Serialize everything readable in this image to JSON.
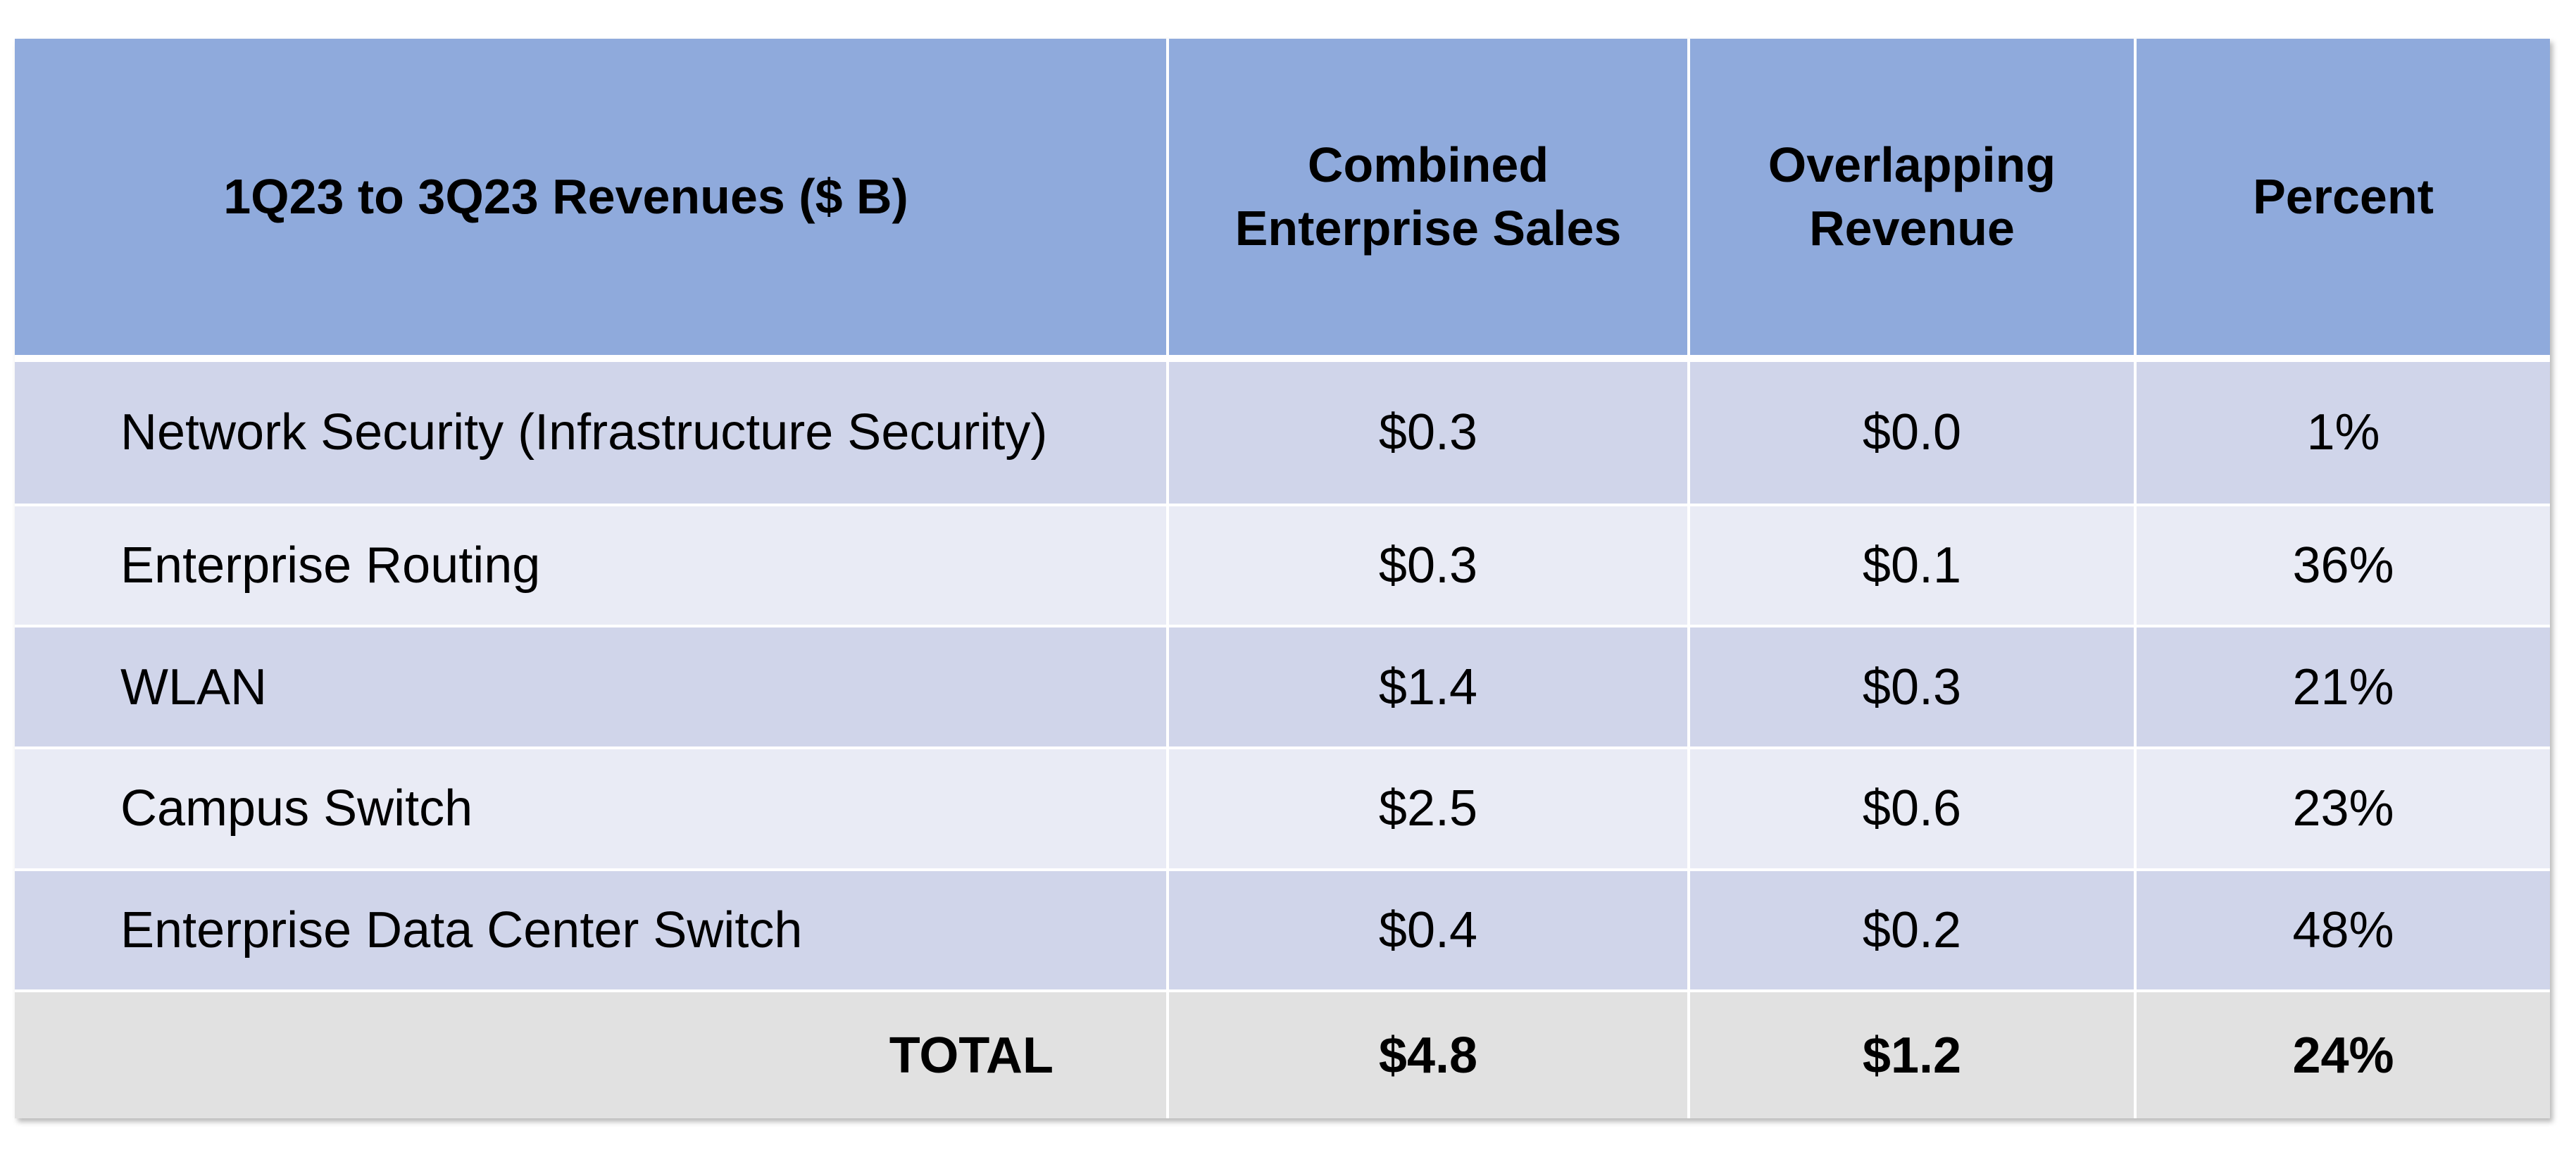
{
  "chart_data": {
    "type": "table",
    "columns": [
      "1Q23 to 3Q23 Revenues ($ B)",
      "Combined Enterprise Sales",
      "Overlapping Revenue",
      "Percent"
    ],
    "rows": [
      {
        "segment": "Network Security (Infrastructure Security)",
        "combined_enterprise_sales": "$0.3",
        "overlapping_revenue": "$0.0",
        "percent": "1%"
      },
      {
        "segment": "Enterprise Routing",
        "combined_enterprise_sales": "$0.3",
        "overlapping_revenue": "$0.1",
        "percent": "36%"
      },
      {
        "segment": "WLAN",
        "combined_enterprise_sales": "$1.4",
        "overlapping_revenue": "$0.3",
        "percent": "21%"
      },
      {
        "segment": "Campus Switch",
        "combined_enterprise_sales": "$2.5",
        "overlapping_revenue": "$0.6",
        "percent": "23%"
      },
      {
        "segment": "Enterprise Data Center Switch",
        "combined_enterprise_sales": "$0.4",
        "overlapping_revenue": "$0.2",
        "percent": "48%"
      }
    ],
    "total": {
      "label": "TOTAL",
      "combined_enterprise_sales": "$4.8",
      "overlapping_revenue": "$1.2",
      "percent": "24%"
    }
  },
  "colors": {
    "header_fill": "#8faadc",
    "row_fill_dark": "#d0d5ea",
    "row_fill_light": "#e9ebf5",
    "total_fill": "#e1e1e1",
    "border": "#ffffff"
  }
}
